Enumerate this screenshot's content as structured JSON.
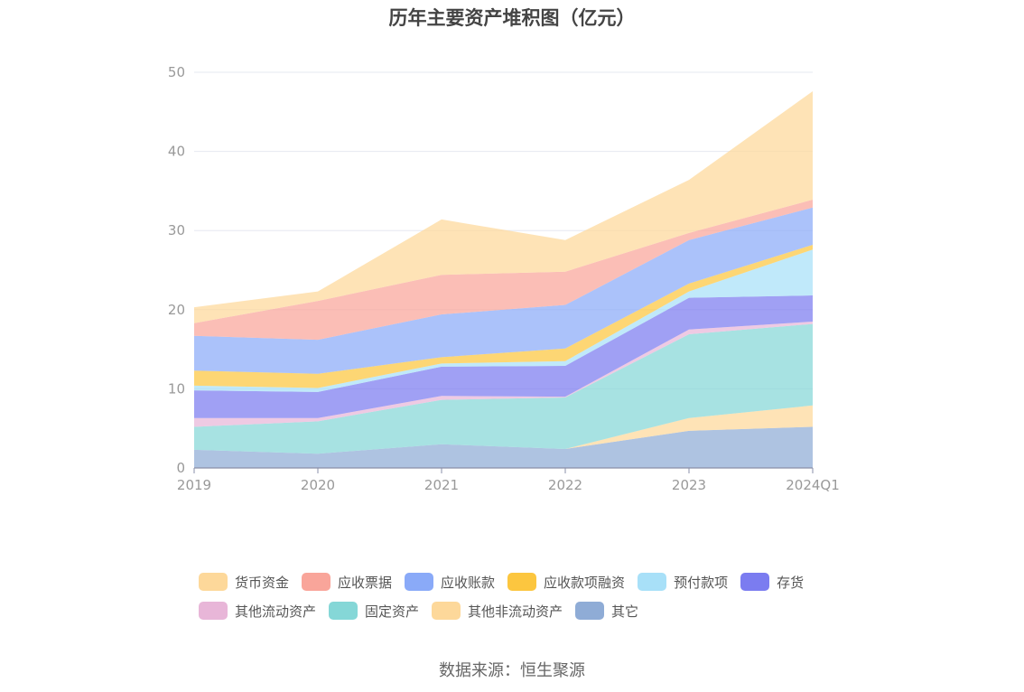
{
  "chart_data": {
    "type": "area",
    "stacked": true,
    "title": "历年主要资产堆积图（亿元）",
    "categories": [
      "2019",
      "2020",
      "2021",
      "2022",
      "2023",
      "2024Q1"
    ],
    "ylim": [
      0,
      50
    ],
    "yticks": [
      "0",
      "10",
      "20",
      "30",
      "40",
      "50"
    ],
    "series": [
      {
        "name": "其它",
        "color": "#8facd6",
        "values": [
          2.3,
          1.8,
          3.0,
          2.4,
          4.7,
          5.2
        ]
      },
      {
        "name": "其他非流动资产",
        "color": "#fdd89a",
        "values": [
          0.0,
          0.0,
          0.0,
          0.0,
          1.6,
          2.7
        ]
      },
      {
        "name": "固定资产",
        "color": "#85d7d7",
        "values": [
          2.9,
          4.1,
          5.6,
          6.5,
          10.6,
          10.3
        ]
      },
      {
        "name": "其他流动资产",
        "color": "#e8b6d8",
        "values": [
          1.1,
          0.4,
          0.5,
          0.1,
          0.6,
          0.3
        ]
      },
      {
        "name": "存货",
        "color": "#7b7cf0",
        "values": [
          3.5,
          3.3,
          3.7,
          3.9,
          4.0,
          3.3
        ]
      },
      {
        "name": "预付款项",
        "color": "#a8e0f8",
        "values": [
          0.6,
          0.5,
          0.4,
          0.6,
          0.8,
          5.8
        ]
      },
      {
        "name": "应收款项融资",
        "color": "#fcc63f",
        "values": [
          1.9,
          1.8,
          0.8,
          1.6,
          1.0,
          0.6
        ]
      },
      {
        "name": "应收账款",
        "color": "#8aaaf8",
        "values": [
          4.4,
          4.3,
          5.4,
          5.5,
          5.5,
          4.7
        ]
      },
      {
        "name": "应收票据",
        "color": "#f9a59a",
        "values": [
          1.6,
          4.9,
          5.0,
          4.2,
          0.9,
          1.0
        ]
      },
      {
        "name": "货币资金",
        "color": "#fdd89a",
        "values": [
          2.0,
          1.2,
          7.0,
          4.0,
          6.7,
          13.7
        ]
      }
    ],
    "legend_position": "bottom"
  },
  "legend": {
    "row1": [
      {
        "name": "货币资金",
        "color": "#fdd89a"
      },
      {
        "name": "应收票据",
        "color": "#f9a59a"
      },
      {
        "name": "应收账款",
        "color": "#8aaaf8"
      },
      {
        "name": "应收款项融资",
        "color": "#fcc63f"
      },
      {
        "name": "预付款项",
        "color": "#a8e0f8"
      },
      {
        "name": "存货",
        "color": "#7b7cf0"
      }
    ],
    "row2": [
      {
        "name": "其他流动资产",
        "color": "#e8b6d8"
      },
      {
        "name": "固定资产",
        "color": "#85d7d7"
      },
      {
        "name": "其他非流动资产",
        "color": "#fdd89a"
      },
      {
        "name": "其它",
        "color": "#8facd6"
      }
    ]
  },
  "source": "数据来源：恒生聚源"
}
